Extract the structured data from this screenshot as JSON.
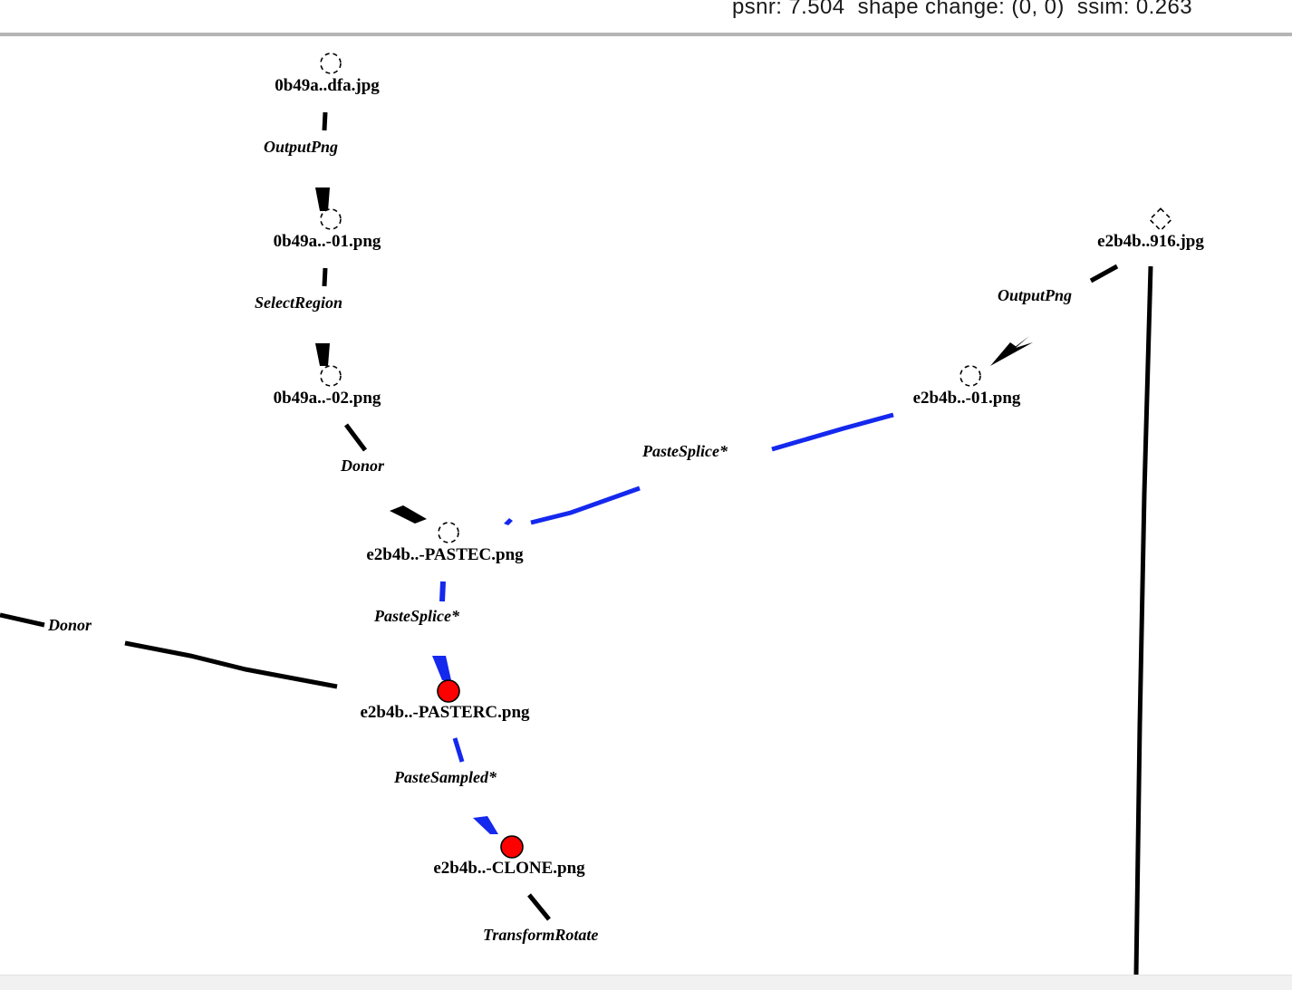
{
  "status": {
    "text": "psnr: 7.504  shape change: (0, 0)  ssim: 0.263"
  },
  "colors": {
    "edge_default": "#000000",
    "edge_selected": "#1428ee",
    "node_marker_fill": "#ff0000",
    "node_outline": "#000000"
  },
  "nodes": [
    {
      "id": "n1",
      "label": "0b49a..dfa.jpg",
      "marker": "dashed-circle"
    },
    {
      "id": "n2",
      "label": "0b49a..-01.png",
      "marker": "dashed-circle"
    },
    {
      "id": "n3",
      "label": "0b49a..-02.png",
      "marker": "dashed-circle"
    },
    {
      "id": "n4",
      "label": "e2b4b..-PASTEC.png",
      "marker": "dashed-circle"
    },
    {
      "id": "n5",
      "label": "e2b4b..-PASTERC.png",
      "marker": "red-circle"
    },
    {
      "id": "n6",
      "label": "e2b4b..-CLONE.png",
      "marker": "red-circle"
    },
    {
      "id": "n7",
      "label": "e2b4b..916.jpg",
      "marker": "dashed-diamond"
    },
    {
      "id": "n8",
      "label": "e2b4b..-01.png",
      "marker": "dashed-circle"
    }
  ],
  "edges": [
    {
      "id": "e1",
      "label": "OutputPng",
      "from": "0b49a..dfa.jpg",
      "to": "0b49a..-01.png",
      "highlight": false
    },
    {
      "id": "e2",
      "label": "SelectRegion",
      "from": "0b49a..-01.png",
      "to": "0b49a..-02.png",
      "highlight": false
    },
    {
      "id": "e3",
      "label": "Donor",
      "from": "0b49a..-02.png",
      "to": "e2b4b..-PASTEC.png",
      "highlight": false
    },
    {
      "id": "e4",
      "label": "OutputPng",
      "from": "e2b4b..916.jpg",
      "to": "e2b4b..-01.png",
      "highlight": false
    },
    {
      "id": "e5",
      "label": "PasteSplice*",
      "from": "e2b4b..-01.png",
      "to": "e2b4b..-PASTEC.png",
      "highlight": true
    },
    {
      "id": "e6",
      "label": "PasteSplice*",
      "from": "e2b4b..-PASTEC.png",
      "to": "e2b4b..-PASTERC.png",
      "highlight": true
    },
    {
      "id": "e7",
      "label": "Donor",
      "to": "e2b4b..-PASTERC.png",
      "highlight": false
    },
    {
      "id": "e8",
      "label": "PasteSampled*",
      "from": "e2b4b..-PASTERC.png",
      "to": "e2b4b..-CLONE.png",
      "highlight": true
    },
    {
      "id": "e9",
      "label": "TransformRotate",
      "from": "e2b4b..-CLONE.png",
      "highlight": false
    },
    {
      "id": "e10",
      "label": "",
      "from": "e2b4b..916.jpg",
      "highlight": false
    }
  ]
}
